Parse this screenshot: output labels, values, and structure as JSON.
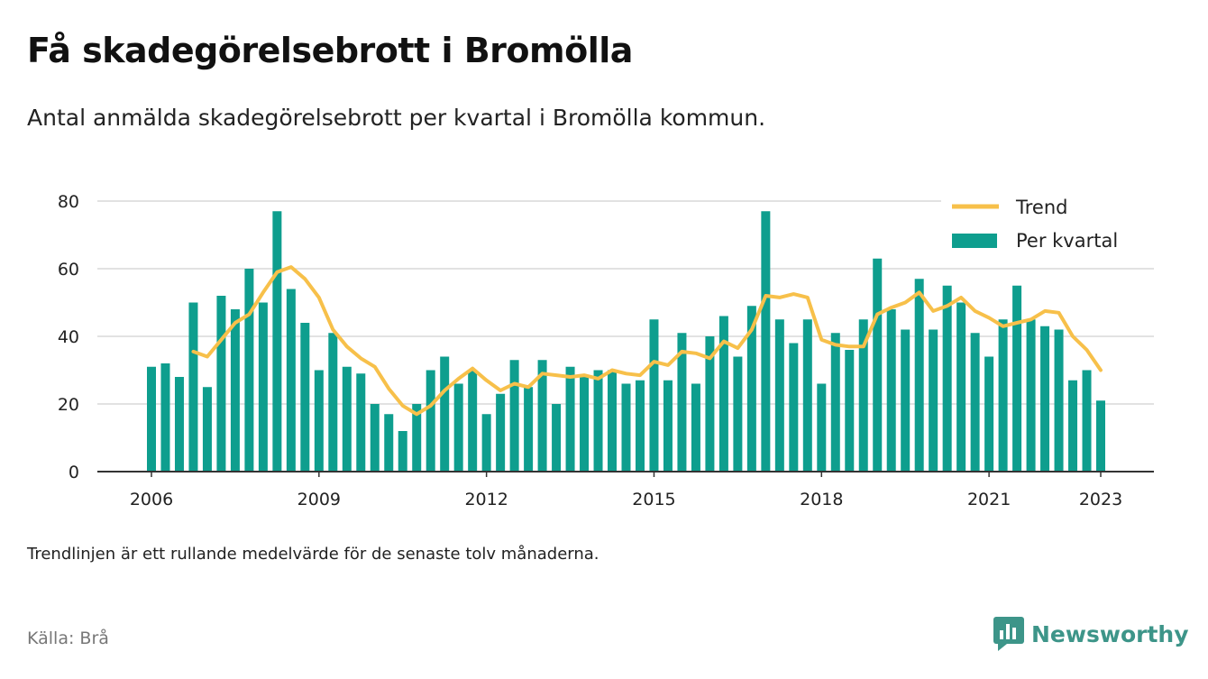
{
  "title": "Få skadegörelsebrott i Bromölla",
  "subtitle": "Antal anmälda skadegörelsebrott per kvartal i Bromölla kommun.",
  "note": "Trendlinjen är ett rullande medelvärde för de senaste tolv månaderna.",
  "source": "Källa: Brå",
  "brand": {
    "name": "Newsworthy",
    "icon": "newsworthy-logo-icon",
    "color": "#3d9589"
  },
  "colors": {
    "bars": "#0e9e8e",
    "trend": "#f7c04a",
    "grid": "#d9d9d9",
    "axis": "#333333"
  },
  "chart_data": {
    "type": "bar",
    "legend": {
      "position": "top-right",
      "entries": [
        "Trend",
        "Per kvartal"
      ]
    },
    "ylim": [
      0,
      80
    ],
    "yticks": [
      "0",
      "20",
      "40",
      "60",
      "80"
    ],
    "xticks": [
      "2006",
      "2009",
      "2012",
      "2015",
      "2018",
      "2021",
      "2023"
    ],
    "grid": true,
    "x_range": [
      "2006 Q1",
      "2023 Q1"
    ],
    "series": [
      {
        "name": "Per kvartal",
        "type": "bar",
        "values": [
          31,
          32,
          28,
          50,
          25,
          52,
          48,
          60,
          50,
          77,
          54,
          44,
          30,
          41,
          31,
          29,
          20,
          17,
          12,
          20,
          30,
          34,
          26,
          30,
          17,
          23,
          33,
          25,
          33,
          20,
          31,
          28,
          30,
          30,
          26,
          27,
          45,
          27,
          41,
          26,
          40,
          46,
          34,
          49,
          77,
          45,
          38,
          45,
          26,
          41,
          36,
          45,
          63,
          48,
          42,
          57,
          42,
          55,
          50,
          41,
          34,
          45,
          55,
          45,
          43,
          42,
          27,
          30,
          21
        ]
      },
      {
        "name": "Trend",
        "type": "line",
        "values": [
          null,
          null,
          null,
          35.5,
          34,
          39,
          44,
          46.5,
          53,
          59,
          60.5,
          57,
          51.5,
          42,
          37,
          33.5,
          31,
          24.5,
          19.5,
          17,
          19.5,
          24,
          27.5,
          30.5,
          27,
          24,
          26,
          25,
          29,
          28.5,
          28,
          28.5,
          27.5,
          30,
          29,
          28.5,
          32.5,
          31.5,
          35.5,
          35,
          33.5,
          38.5,
          36.5,
          42,
          52,
          51.5,
          52.5,
          51.5,
          39,
          37.5,
          37,
          37,
          46.5,
          48.5,
          50,
          53,
          47.5,
          49,
          51.5,
          47.5,
          45.5,
          43,
          44,
          45,
          47.5,
          47,
          40,
          36,
          30
        ]
      }
    ]
  }
}
